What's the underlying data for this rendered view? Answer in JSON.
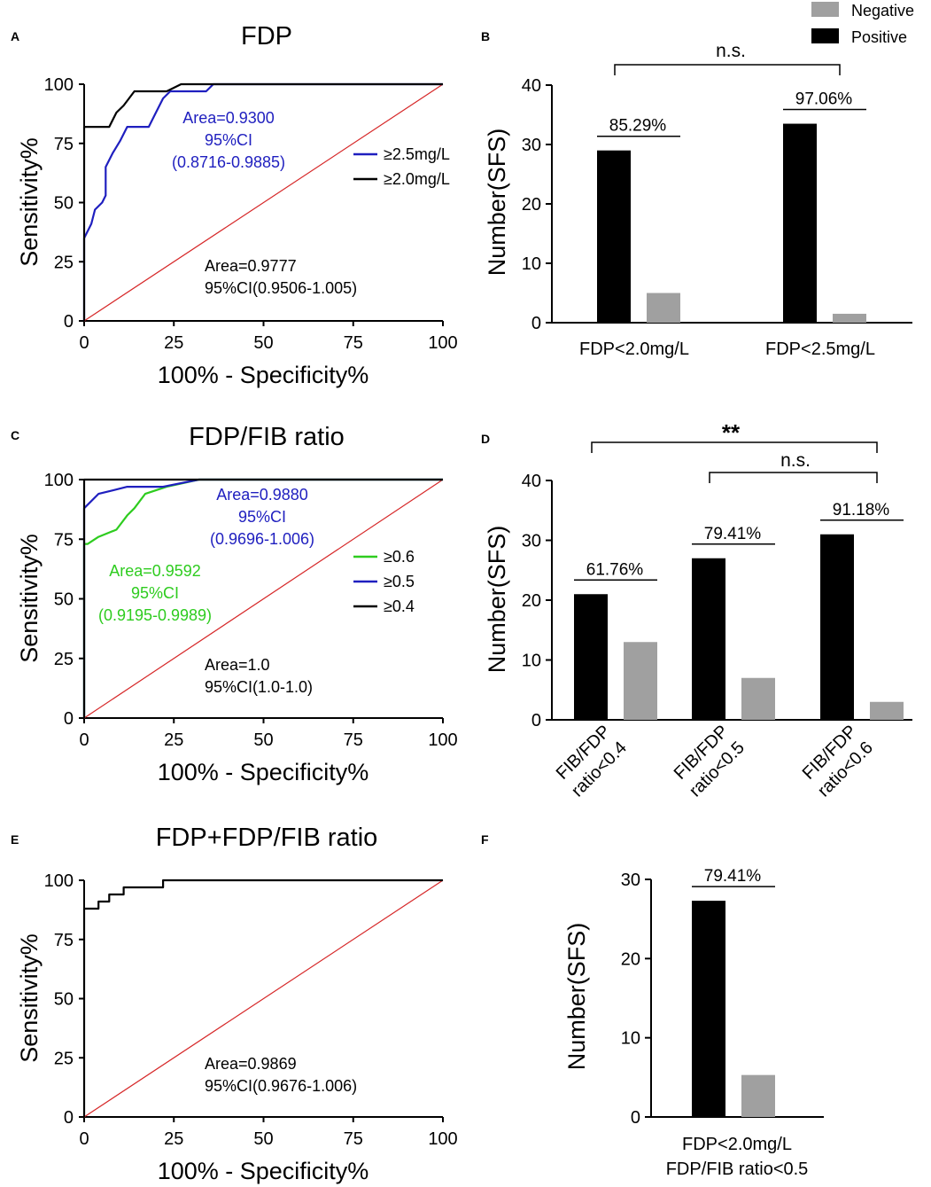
{
  "chart_data": [
    {
      "panel": "A",
      "type": "line",
      "title": "FDP",
      "xlabel": "100% - Specificity%",
      "ylabel": "Sensitivity%",
      "xlim": [
        0,
        100
      ],
      "ylim": [
        0,
        100
      ],
      "xticks": [
        "0",
        "25",
        "50",
        "75",
        "100"
      ],
      "yticks": [
        "0",
        "25",
        "50",
        "75",
        "100"
      ],
      "series": [
        {
          "name": "≥2.5mg/L",
          "color": "#1f1fbf",
          "x": [
            0,
            0,
            2,
            3,
            5,
            6,
            6,
            8,
            10,
            12,
            12,
            18,
            20,
            22,
            24,
            27,
            34,
            36,
            100
          ],
          "y": [
            0,
            35,
            41,
            47,
            50,
            53,
            65,
            71,
            76,
            82,
            82,
            82,
            88,
            94,
            97,
            97,
            97,
            100,
            100
          ]
        },
        {
          "name": "≥2.0mg/L",
          "color": "#000000",
          "x": [
            0,
            0,
            7,
            9,
            11,
            14,
            23,
            27,
            100
          ],
          "y": [
            0,
            82,
            82,
            88,
            91,
            97,
            97,
            100,
            100
          ]
        },
        {
          "name": "reference",
          "color": "#d62728",
          "x": [
            0,
            100
          ],
          "y": [
            0,
            100
          ]
        }
      ],
      "annotations": [
        {
          "lines": [
            "Area=0.9300",
            "95%CI",
            "(0.8716-0.9885)"
          ],
          "color": "#1f1fbf"
        },
        {
          "lines": [
            "Area=0.9777",
            "95%CI(0.9506-1.005)"
          ],
          "color": "#000000"
        }
      ],
      "legend": [
        "≥2.5mg/L",
        "≥2.0mg/L"
      ]
    },
    {
      "panel": "B",
      "type": "bar",
      "ylabel": "Number(SFS)",
      "ylim": [
        0,
        40
      ],
      "yticks": [
        "0",
        "10",
        "20",
        "30",
        "40"
      ],
      "categories": [
        "FDP<2.0mg/L",
        "FDP<2.5mg/L"
      ],
      "series": [
        {
          "name": "Positive",
          "color": "#000000",
          "values": [
            29,
            33.5
          ]
        },
        {
          "name": "Negative",
          "color": "#a0a0a0",
          "values": [
            5,
            1.5
          ]
        }
      ],
      "percent_labels": [
        "85.29%",
        "97.06%"
      ],
      "significance": [
        {
          "label": "n.s.",
          "between": [
            0,
            1
          ]
        }
      ],
      "legend": [
        "Negative",
        "Positive"
      ]
    },
    {
      "panel": "C",
      "type": "line",
      "title": "FDP/FIB ratio",
      "xlabel": "100% - Specificity%",
      "ylabel": "Sensitivity%",
      "xlim": [
        0,
        100
      ],
      "ylim": [
        0,
        100
      ],
      "xticks": [
        "0",
        "25",
        "50",
        "75",
        "100"
      ],
      "yticks": [
        "0",
        "25",
        "50",
        "75",
        "100"
      ],
      "series": [
        {
          "name": "≥0.6",
          "color": "#2ecc1f",
          "x": [
            0,
            0,
            1,
            4,
            9,
            12,
            14,
            17,
            23,
            32,
            100
          ],
          "y": [
            0,
            73,
            73,
            76,
            79,
            85,
            88,
            94,
            97,
            100,
            100
          ]
        },
        {
          "name": "≥0.5",
          "color": "#1f1fbf",
          "x": [
            0,
            0,
            4,
            12,
            22,
            32,
            100
          ],
          "y": [
            0,
            88,
            94,
            97,
            97,
            100,
            100
          ]
        },
        {
          "name": "≥0.4",
          "color": "#000000",
          "x": [
            0,
            0,
            100
          ],
          "y": [
            0,
            100,
            100
          ]
        },
        {
          "name": "reference",
          "color": "#d62728",
          "x": [
            0,
            100
          ],
          "y": [
            0,
            100
          ]
        }
      ],
      "annotations": [
        {
          "lines": [
            "Area=0.9880",
            "95%CI",
            "(0.9696-1.006)"
          ],
          "color": "#1f1fbf"
        },
        {
          "lines": [
            "Area=0.9592",
            "95%CI",
            "(0.9195-0.9989)"
          ],
          "color": "#2ecc1f"
        },
        {
          "lines": [
            "Area=1.0",
            "95%CI(1.0-1.0)"
          ],
          "color": "#000000"
        }
      ],
      "legend": [
        "≥0.6",
        "≥0.5",
        "≥0.4"
      ]
    },
    {
      "panel": "D",
      "type": "bar",
      "ylabel": "Number(SFS)",
      "ylim": [
        0,
        40
      ],
      "yticks": [
        "0",
        "10",
        "20",
        "30",
        "40"
      ],
      "categories": [
        [
          "FIB/FDP",
          "ratio<0.4"
        ],
        [
          "FIB/FDP",
          "ratio<0.5"
        ],
        [
          "FIB/FDP",
          "ratio<0.6"
        ]
      ],
      "series": [
        {
          "name": "Positive",
          "color": "#000000",
          "values": [
            21,
            27,
            31
          ]
        },
        {
          "name": "Negative",
          "color": "#a0a0a0",
          "values": [
            13,
            7,
            3
          ]
        }
      ],
      "percent_labels": [
        "61.76%",
        "79.41%",
        "91.18%"
      ],
      "significance": [
        {
          "label": "**",
          "between": [
            0,
            2
          ]
        },
        {
          "label": "n.s.",
          "between": [
            1,
            2
          ]
        }
      ]
    },
    {
      "panel": "E",
      "type": "line",
      "title": "FDP+FDP/FIB ratio",
      "xlabel": "100% - Specificity%",
      "ylabel": "Sensitivity%",
      "xlim": [
        0,
        100
      ],
      "ylim": [
        0,
        100
      ],
      "xticks": [
        "0",
        "25",
        "50",
        "75",
        "100"
      ],
      "yticks": [
        "0",
        "25",
        "50",
        "75",
        "100"
      ],
      "series": [
        {
          "name": "combined",
          "color": "#000000",
          "x": [
            0,
            0,
            4,
            4,
            7,
            7,
            11,
            11,
            22,
            22,
            100
          ],
          "y": [
            0,
            88,
            88,
            91,
            91,
            94,
            94,
            97,
            97,
            100,
            100
          ]
        },
        {
          "name": "reference",
          "color": "#d62728",
          "x": [
            0,
            100
          ],
          "y": [
            0,
            100
          ]
        }
      ],
      "annotations": [
        {
          "lines": [
            "Area=0.9869",
            "95%CI(0.9676-1.006)"
          ],
          "color": "#000000"
        }
      ]
    },
    {
      "panel": "F",
      "type": "bar",
      "ylabel": "Number(SFS)",
      "ylim": [
        0,
        30
      ],
      "yticks": [
        "0",
        "10",
        "20",
        "30"
      ],
      "categories": [
        [
          "FDP<2.0mg/L",
          "FDP/FIB ratio<0.5"
        ]
      ],
      "series": [
        {
          "name": "Positive",
          "color": "#000000",
          "values": [
            27.3
          ]
        },
        {
          "name": "Negative",
          "color": "#a0a0a0",
          "values": [
            5.3
          ]
        }
      ],
      "percent_labels": [
        "79.41%"
      ]
    }
  ],
  "colors": {
    "blue": "#1f1fbf",
    "green": "#2ecc1f",
    "red": "#d62728",
    "gray": "#a0a0a0",
    "black": "#000000"
  }
}
